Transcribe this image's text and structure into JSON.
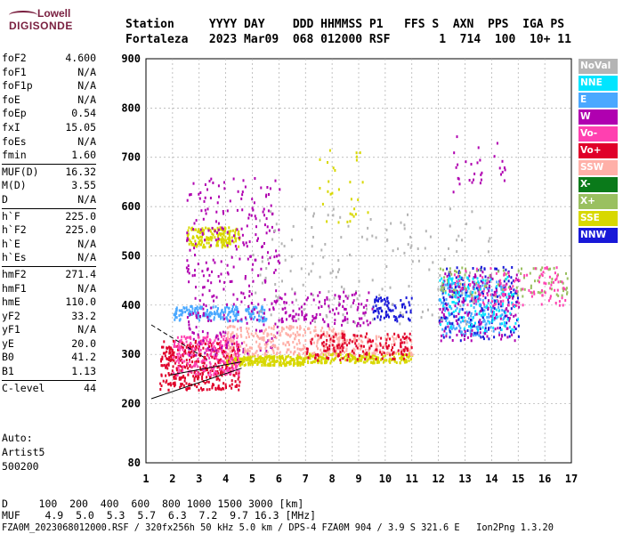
{
  "logo": {
    "line1": "Lowell",
    "line2": "DIGISONDE"
  },
  "header": {
    "row1": "Station     YYYY DAY    DDD HHMMSS P1   FFS S  AXN  PPS  IGA PS",
    "row2": "Fortaleza   2023 Mar09  068 012000 RSF       1  714  100  10+ 11"
  },
  "params": [
    {
      "group": [
        {
          "k": "foF2",
          "v": "4.600"
        },
        {
          "k": "foF1",
          "v": "N/A"
        },
        {
          "k": "foF1p",
          "v": "N/A"
        },
        {
          "k": "foE",
          "v": "N/A"
        },
        {
          "k": "foEp",
          "v": "0.54"
        },
        {
          "k": "fxI",
          "v": "15.05"
        },
        {
          "k": "foEs",
          "v": "N/A"
        },
        {
          "k": "fmin",
          "v": "1.60"
        }
      ]
    },
    {
      "group": [
        {
          "k": "MUF(D)",
          "v": "16.32"
        },
        {
          "k": "M(D)",
          "v": "3.55"
        },
        {
          "k": "D",
          "v": "N/A"
        }
      ]
    },
    {
      "group": [
        {
          "k": "h`F",
          "v": "225.0"
        },
        {
          "k": "h`F2",
          "v": "225.0"
        },
        {
          "k": "h`E",
          "v": "N/A"
        },
        {
          "k": "h`Es",
          "v": "N/A"
        }
      ]
    },
    {
      "group": [
        {
          "k": "hmF2",
          "v": "271.4"
        },
        {
          "k": "hmF1",
          "v": "N/A"
        },
        {
          "k": "hmE",
          "v": "110.0"
        },
        {
          "k": "yF2",
          "v": "33.2"
        },
        {
          "k": "yF1",
          "v": "N/A"
        },
        {
          "k": "yE",
          "v": "20.0"
        },
        {
          "k": "B0",
          "v": "41.2"
        },
        {
          "k": "B1",
          "v": "1.13"
        }
      ]
    },
    {
      "group": [
        {
          "k": "C-level",
          "v": "44"
        }
      ]
    }
  ],
  "auto": {
    "line1": "Auto:",
    "line2": "Artist5",
    "line3": "500200"
  },
  "legend": [
    {
      "label": "NoVal",
      "color": "#b4b4b4"
    },
    {
      "label": "NNE",
      "color": "#00e5ff"
    },
    {
      "label": "E",
      "color": "#4aa8ff"
    },
    {
      "label": "W",
      "color": "#b000b0"
    },
    {
      "label": "Vo-",
      "color": "#ff40b0"
    },
    {
      "label": "Vo+",
      "color": "#e0002a"
    },
    {
      "label": "SSW",
      "color": "#ffb0a8"
    },
    {
      "label": "X-",
      "color": "#0a7a1a"
    },
    {
      "label": "X+",
      "color": "#9ac060"
    },
    {
      "label": "SSE",
      "color": "#d8d800"
    },
    {
      "label": "NNW",
      "color": "#1818d8"
    }
  ],
  "bottom": {
    "row1": "D     100  200  400  600  800 1000 1500 3000 [km]",
    "row2": "MUF    4.9  5.0  5.3  5.7  6.3  7.2  9.7 16.3 [MHz]",
    "row3": "FZA0M_2023068012000.RSF / 320fx256h 50 kHz 5.0 km / DPS-4 FZA0M 904 / 3.9 S 321.6 E   Ion2Png 1.3.20"
  },
  "chart_data": {
    "type": "scatter",
    "xlim": [
      1,
      17
    ],
    "ylim": [
      80,
      900
    ],
    "x_ticks": [
      1,
      2,
      3,
      4,
      5,
      6,
      7,
      8,
      9,
      10,
      11,
      12,
      13,
      14,
      15,
      16,
      17
    ],
    "y_ticks": [
      80,
      200,
      300,
      400,
      500,
      600,
      700,
      800,
      900
    ],
    "grid": true,
    "clusters": [
      {
        "name": "SSE",
        "color": "#d8d800",
        "x": [
          2.5,
          4.5
        ],
        "y": [
          520,
          560
        ],
        "n": 180
      },
      {
        "name": "SSE",
        "color": "#d8d800",
        "x": [
          4.0,
          7.0
        ],
        "y": [
          280,
          300
        ],
        "n": 260
      },
      {
        "name": "SSE",
        "color": "#d8d800",
        "x": [
          7.0,
          11.0
        ],
        "y": [
          285,
          305
        ],
        "n": 220
      },
      {
        "name": "Vo+",
        "color": "#e0002a",
        "x": [
          1.5,
          4.5
        ],
        "y": [
          230,
          330
        ],
        "n": 380
      },
      {
        "name": "Vo-",
        "color": "#ff40b0",
        "x": [
          2.0,
          4.5
        ],
        "y": [
          260,
          340
        ],
        "n": 220
      },
      {
        "name": "E",
        "color": "#4aa8ff",
        "x": [
          2.0,
          5.5
        ],
        "y": [
          370,
          400
        ],
        "n": 200
      },
      {
        "name": "E",
        "color": "#4aa8ff",
        "x": [
          12.0,
          14.5
        ],
        "y": [
          340,
          450
        ],
        "n": 220
      },
      {
        "name": "NNW",
        "color": "#1818d8",
        "x": [
          12.0,
          15.0
        ],
        "y": [
          330,
          480
        ],
        "n": 160
      },
      {
        "name": "NNW",
        "color": "#1818d8",
        "x": [
          9.5,
          11.0
        ],
        "y": [
          370,
          420
        ],
        "n": 80
      },
      {
        "name": "W",
        "color": "#b000b0",
        "x": [
          2.5,
          6.0
        ],
        "y": [
          300,
          660
        ],
        "n": 320
      },
      {
        "name": "W",
        "color": "#b000b0",
        "x": [
          12.0,
          15.0
        ],
        "y": [
          330,
          470
        ],
        "n": 160
      },
      {
        "name": "SSW",
        "color": "#ffb0a8",
        "x": [
          4.0,
          8.5
        ],
        "y": [
          300,
          360
        ],
        "n": 260
      },
      {
        "name": "SSW",
        "color": "#ffb0a8",
        "x": [
          8.0,
          11.0
        ],
        "y": [
          300,
          340
        ],
        "n": 120
      },
      {
        "name": "Vo+",
        "color": "#e0002a",
        "x": [
          7.0,
          11.0
        ],
        "y": [
          290,
          345
        ],
        "n": 160
      },
      {
        "name": "X+",
        "color": "#9ac060",
        "x": [
          12.0,
          17.0
        ],
        "y": [
          420,
          480
        ],
        "n": 100
      },
      {
        "name": "NNE",
        "color": "#00e5ff",
        "x": [
          12.0,
          15.0
        ],
        "y": [
          350,
          460
        ],
        "n": 120
      },
      {
        "name": "NoVal",
        "color": "#b4b4b4",
        "x": [
          5.0,
          14.0
        ],
        "y": [
          360,
          600
        ],
        "n": 160
      },
      {
        "name": "W",
        "color": "#b000b0",
        "x": [
          6.0,
          9.5
        ],
        "y": [
          360,
          430
        ],
        "n": 120
      },
      {
        "name": "Vo-",
        "color": "#ff40b0",
        "x": [
          12.5,
          16.8
        ],
        "y": [
          400,
          480
        ],
        "n": 110
      },
      {
        "name": "W",
        "color": "#b000b0",
        "x": [
          12.5,
          14.5
        ],
        "y": [
          630,
          750
        ],
        "n": 30
      },
      {
        "name": "SSE",
        "color": "#d8d800",
        "x": [
          7.5,
          9.5
        ],
        "y": [
          560,
          720
        ],
        "n": 30
      }
    ],
    "traces": [
      {
        "points": [
          [
            1.2,
            210
          ],
          [
            4.6,
            272
          ]
        ]
      },
      {
        "points": [
          [
            1.9,
            258
          ],
          [
            4.6,
            285
          ]
        ]
      },
      {
        "points": [
          [
            1.2,
            360
          ],
          [
            3.3,
            290
          ]
        ]
      }
    ]
  }
}
